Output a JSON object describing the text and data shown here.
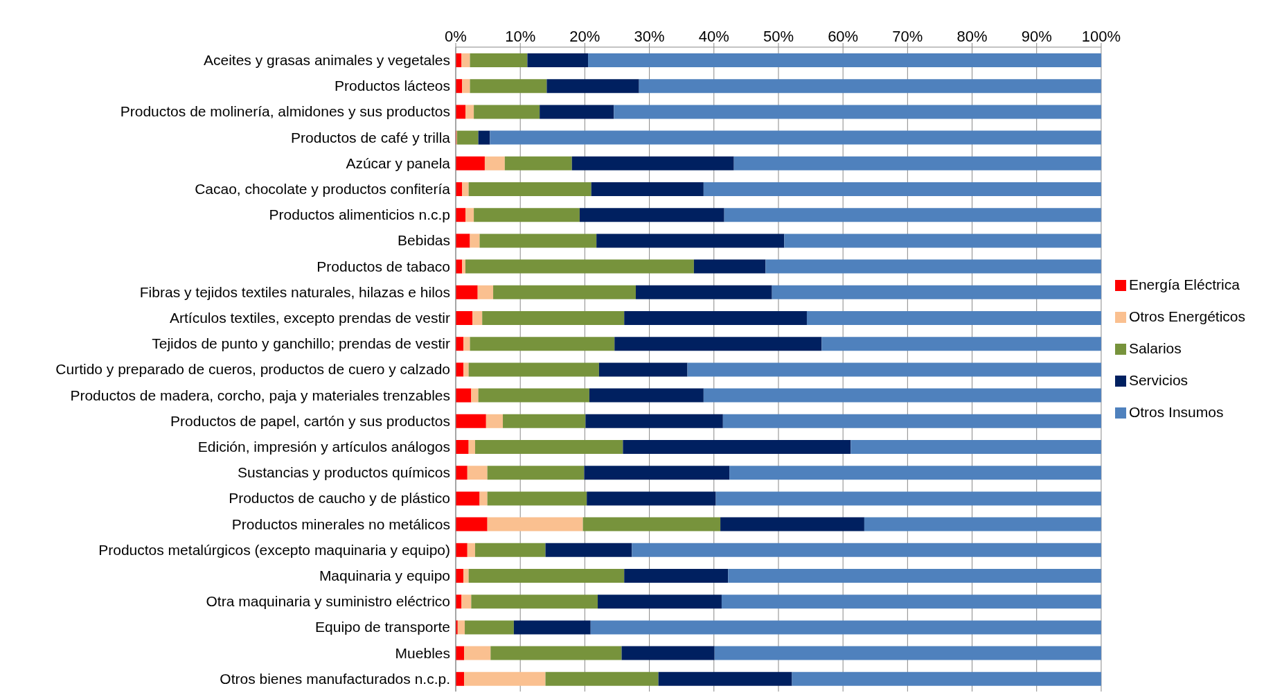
{
  "chart_data": {
    "type": "bar",
    "orientation": "horizontal",
    "stacked": true,
    "grid": "x",
    "legend": "right",
    "categories": [
      "Aceites y grasas  animales y vegetales",
      "Productos lácteos",
      "Productos de molinería, almidones  y sus productos",
      "Productos de café y trilla",
      "Azúcar y panela",
      "Cacao, chocolate y productos confitería",
      "Productos alimenticios  n.c.p",
      "Bebidas",
      "Productos de tabaco",
      "Fibras y tejidos  textiles naturales,  hilazas e hilos",
      "Artículos textiles, excepto prendas de vestir",
      "Tejidos de punto y ganchillo; prendas de vestir",
      "Curtido y preparado de cueros, productos de cuero y calzado",
      "Productos de madera, corcho, paja  y materiales trenzables",
      "Productos de papel, cartón y sus productos",
      "Edición, impresión y artículos análogos",
      "Sustancias  y productos químicos",
      "Productos de caucho y de plástico",
      "Productos minerales no metálicos",
      "Productos metalúrgicos (excepto maquinaria  y equipo)",
      "Maquinaria y equipo",
      "Otra maquinaria  y suministro  eléctrico",
      "Equipo de transporte",
      "Muebles",
      "Otros bienes manufacturados  n.c.p."
    ],
    "series": [
      {
        "name": "Energía Eléctrica",
        "color": "#ff0000",
        "values": [
          0.9,
          1.0,
          1.5,
          0.1,
          4.5,
          1.0,
          1.5,
          2.2,
          1.0,
          3.4,
          2.6,
          1.2,
          1.2,
          2.4,
          4.7,
          2.0,
          1.8,
          3.7,
          4.9,
          1.8,
          1.2,
          0.9,
          0.3,
          1.3,
          1.3
        ]
      },
      {
        "name": "Otros Energéticos",
        "color": "#fac090",
        "values": [
          1.3,
          1.2,
          1.3,
          0.1,
          3.1,
          1.0,
          1.3,
          1.5,
          0.5,
          2.4,
          1.5,
          1.0,
          0.8,
          1.1,
          2.6,
          1.0,
          3.1,
          1.2,
          14.8,
          1.2,
          0.8,
          1.5,
          1.1,
          4.1,
          12.6
        ]
      },
      {
        "name": "Salarios",
        "color": "#77933c",
        "values": [
          8.9,
          11.9,
          10.2,
          3.3,
          10.4,
          19.0,
          16.4,
          18.1,
          35.4,
          22.1,
          22.0,
          22.4,
          20.2,
          17.2,
          12.8,
          22.9,
          15.0,
          15.4,
          21.3,
          10.9,
          24.1,
          19.6,
          7.6,
          20.3,
          17.5
        ]
      },
      {
        "name": "Servicios",
        "color": "#002060",
        "values": [
          9.4,
          14.3,
          11.5,
          1.8,
          25.1,
          17.4,
          22.4,
          29.1,
          11.1,
          21.1,
          28.3,
          32.1,
          13.7,
          17.7,
          21.3,
          35.3,
          22.5,
          20.0,
          22.3,
          13.4,
          16.1,
          19.2,
          11.9,
          14.4,
          20.7
        ]
      },
      {
        "name": "Otros Insumos",
        "color": "#4f81bd",
        "values": [
          79.5,
          71.6,
          75.5,
          94.7,
          56.9,
          61.6,
          58.4,
          49.1,
          52.0,
          51.0,
          45.6,
          43.3,
          64.1,
          61.6,
          58.6,
          38.8,
          57.6,
          59.7,
          36.7,
          72.7,
          57.8,
          58.8,
          79.1,
          59.9,
          47.9
        ]
      }
    ],
    "xlim": [
      0,
      100
    ],
    "xticks": [
      {
        "value": 0,
        "label": "0%"
      },
      {
        "value": 10,
        "label": "10%"
      },
      {
        "value": 20,
        "label": "20%"
      },
      {
        "value": 30,
        "label": "30%"
      },
      {
        "value": 40,
        "label": "40%"
      },
      {
        "value": 50,
        "label": "50%"
      },
      {
        "value": 60,
        "label": "60%"
      },
      {
        "value": 70,
        "label": "70%"
      },
      {
        "value": 80,
        "label": "80%"
      },
      {
        "value": 90,
        "label": "90%"
      },
      {
        "value": 100,
        "label": "100%"
      }
    ]
  }
}
